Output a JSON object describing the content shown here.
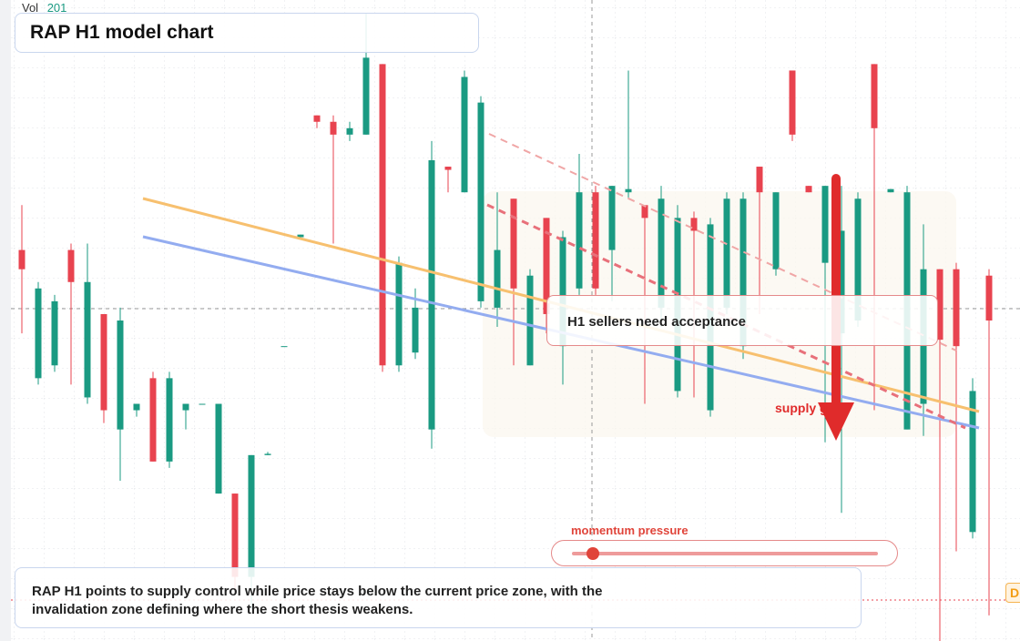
{
  "header": {
    "vol_label": "Vol",
    "vol_value": 201,
    "title": "RAP H1 model chart"
  },
  "chart_data": {
    "type": "candlestick",
    "ylim": [
      0,
      100
    ],
    "up_color": "#1a9a82",
    "down_color": "#e8434f",
    "open": [
      61,
      41,
      43,
      61,
      38,
      51,
      33,
      36,
      41,
      28,
      36,
      37,
      23,
      23,
      10,
      29,
      46,
      63,
      82,
      81,
      79,
      79,
      90,
      43,
      45,
      33,
      74,
      70,
      53,
      52,
      69,
      43,
      66,
      46,
      55,
      70,
      61,
      70,
      68,
      52,
      39,
      66,
      36,
      52,
      46,
      74,
      58,
      89,
      71,
      59,
      48,
      50,
      90,
      70,
      33,
      37,
      58,
      58,
      17,
      57
    ],
    "high": [
      68,
      56,
      54,
      62,
      62,
      51,
      52,
      37,
      42,
      42,
      37,
      37,
      37,
      23,
      29,
      29.5,
      46,
      63.4,
      82,
      82,
      81,
      98,
      90,
      60,
      55,
      78,
      74,
      89,
      85,
      70,
      69,
      58,
      66,
      64,
      76,
      71,
      71,
      89,
      68,
      71,
      68,
      67,
      66,
      70,
      70,
      74,
      70,
      89,
      71,
      71,
      71,
      70,
      90,
      70.5,
      71,
      65,
      58,
      59,
      41,
      58
    ],
    "low": [
      48,
      40,
      42,
      40,
      37,
      34,
      25,
      35,
      28,
      27,
      33,
      37,
      23,
      8,
      5,
      29,
      46,
      63,
      80,
      62,
      78,
      79,
      42,
      42,
      44,
      30,
      70,
      70,
      52,
      49,
      43,
      43,
      48,
      40,
      54,
      54,
      53,
      69,
      37,
      49,
      38,
      38,
      35,
      51,
      44,
      51,
      57,
      78,
      70,
      31,
      20,
      49,
      36,
      70,
      33,
      32,
      0,
      14,
      16,
      4
    ],
    "close": [
      58,
      55,
      53,
      56,
      56,
      36,
      50,
      37,
      28,
      41,
      37,
      37,
      37,
      10,
      29,
      29.2,
      46,
      63.4,
      81,
      79,
      80,
      91,
      43,
      59,
      52,
      75,
      73.5,
      88,
      84,
      61,
      55,
      57,
      51,
      63,
      70,
      55,
      71,
      70.5,
      66,
      69,
      66,
      64,
      65,
      69,
      69,
      70,
      70,
      79,
      70,
      71,
      64,
      69,
      80,
      70.5,
      70,
      58,
      47,
      46,
      39,
      50
    ]
  },
  "annotations": {
    "callout": "H1 sellers need acceptance",
    "supply": "supply g",
    "momentum": "momentum pressure",
    "summary": "RAP H1 points to supply control while price stays below the current price zone, with the invalidation zone defining where the short thesis weakens.",
    "edge_tag": "D"
  }
}
